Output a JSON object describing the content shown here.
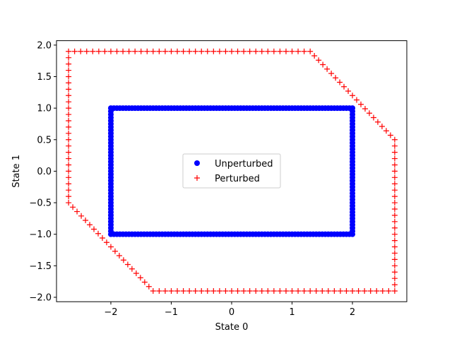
{
  "chart_data": {
    "type": "scatter",
    "xlabel": "State 0",
    "ylabel": "State 1",
    "xlim": [
      -2.9,
      2.9
    ],
    "ylim": [
      -2.07,
      2.07
    ],
    "x_ticks": [
      -2,
      -1,
      0,
      1,
      2
    ],
    "x_tick_labels": [
      "−2",
      "−1",
      "0",
      "1",
      "2"
    ],
    "y_ticks": [
      -2.0,
      -1.5,
      -1.0,
      -0.5,
      0.0,
      0.5,
      1.0,
      1.5,
      2.0
    ],
    "y_tick_labels": [
      "−2.0",
      "−1.5",
      "−1.0",
      "−0.5",
      "0.0",
      "0.5",
      "1.0",
      "1.5",
      "2.0"
    ],
    "grid": false,
    "legend_position": "center",
    "series": [
      {
        "name": "Unperturbed",
        "marker": "circle",
        "color": "#0000ff",
        "shape": "rectangle boundary",
        "vertices": [
          [
            -2,
            -1
          ],
          [
            2,
            -1
          ],
          [
            2,
            1
          ],
          [
            -2,
            1
          ]
        ],
        "x_step": 0.05,
        "y_step": 0.05
      },
      {
        "name": "Perturbed",
        "marker": "plus",
        "color": "#ff0000",
        "shape": "hexagon boundary",
        "vertices": [
          [
            -1.3,
            -1.9
          ],
          [
            2.7,
            -1.9
          ],
          [
            2.7,
            0.5
          ],
          [
            1.3,
            1.9
          ],
          [
            -2.7,
            1.9
          ],
          [
            -2.7,
            -0.5
          ]
        ],
        "step": 0.1
      }
    ]
  }
}
